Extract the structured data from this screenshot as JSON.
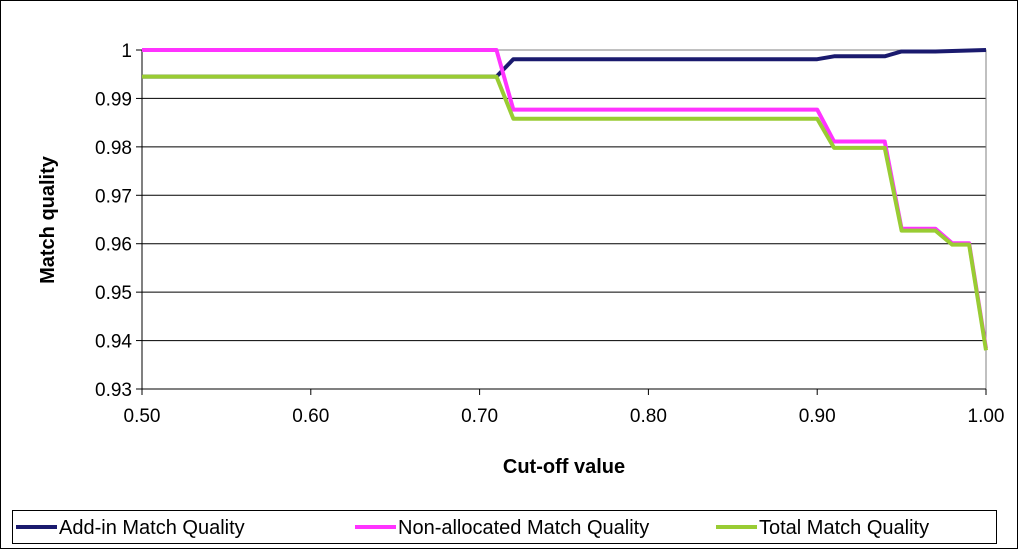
{
  "chart_data": {
    "type": "line",
    "xlabel": "Cut-off value",
    "ylabel": "Match quality",
    "xlim": [
      0.5,
      1.0
    ],
    "ylim": [
      0.93,
      1.0
    ],
    "x_ticks": [
      "0.50",
      "0.60",
      "0.70",
      "0.80",
      "0.90",
      "1.00"
    ],
    "y_ticks": [
      "0.93",
      "0.94",
      "0.95",
      "0.96",
      "0.97",
      "0.98",
      "0.99",
      "1"
    ],
    "grid": "horizontal",
    "legend_position": "bottom",
    "x": [
      0.5,
      0.51,
      0.52,
      0.53,
      0.54,
      0.55,
      0.56,
      0.57,
      0.58,
      0.59,
      0.6,
      0.61,
      0.62,
      0.63,
      0.64,
      0.65,
      0.66,
      0.67,
      0.68,
      0.69,
      0.7,
      0.71,
      0.72,
      0.73,
      0.74,
      0.75,
      0.76,
      0.77,
      0.78,
      0.79,
      0.8,
      0.81,
      0.82,
      0.83,
      0.84,
      0.85,
      0.86,
      0.87,
      0.88,
      0.89,
      0.9,
      0.91,
      0.92,
      0.93,
      0.94,
      0.95,
      0.96,
      0.97,
      0.98,
      0.99,
      1.0
    ],
    "series": [
      {
        "name": "Add-in Match Quality",
        "color": "#1a1a6e",
        "values": [
          0.9945,
          0.9945,
          0.9945,
          0.9945,
          0.9945,
          0.9945,
          0.9945,
          0.9945,
          0.9945,
          0.9945,
          0.9945,
          0.9945,
          0.9945,
          0.9945,
          0.9945,
          0.9945,
          0.9945,
          0.9945,
          0.9945,
          0.9945,
          0.9945,
          0.9945,
          0.9981,
          0.9981,
          0.9981,
          0.9981,
          0.9981,
          0.9981,
          0.9981,
          0.9981,
          0.9981,
          0.9981,
          0.9981,
          0.9981,
          0.9981,
          0.9981,
          0.9981,
          0.9981,
          0.9981,
          0.9981,
          0.9981,
          0.9987,
          0.9987,
          0.9987,
          0.9987,
          0.9997,
          0.9997,
          0.9997,
          0.9998,
          0.9999,
          1.0
        ]
      },
      {
        "name": "Non-allocated Match Quality",
        "color": "#ff33ff",
        "values": [
          1.0,
          1.0,
          1.0,
          1.0,
          1.0,
          1.0,
          1.0,
          1.0,
          1.0,
          1.0,
          1.0,
          1.0,
          1.0,
          1.0,
          1.0,
          1.0,
          1.0,
          1.0,
          1.0,
          1.0,
          1.0,
          1.0,
          0.9877,
          0.9877,
          0.9877,
          0.9877,
          0.9877,
          0.9877,
          0.9877,
          0.9877,
          0.9877,
          0.9877,
          0.9877,
          0.9877,
          0.9877,
          0.9877,
          0.9877,
          0.9877,
          0.9877,
          0.9877,
          0.9877,
          0.9811,
          0.9811,
          0.9811,
          0.9811,
          0.9631,
          0.9631,
          0.9631,
          0.9601,
          0.9601,
          0.9384
        ]
      },
      {
        "name": "Total Match Quality",
        "color": "#99cc33",
        "values": [
          0.9945,
          0.9945,
          0.9945,
          0.9945,
          0.9945,
          0.9945,
          0.9945,
          0.9945,
          0.9945,
          0.9945,
          0.9945,
          0.9945,
          0.9945,
          0.9945,
          0.9945,
          0.9945,
          0.9945,
          0.9945,
          0.9945,
          0.9945,
          0.9945,
          0.9945,
          0.9858,
          0.9858,
          0.9858,
          0.9858,
          0.9858,
          0.9858,
          0.9858,
          0.9858,
          0.9858,
          0.9858,
          0.9858,
          0.9858,
          0.9858,
          0.9858,
          0.9858,
          0.9858,
          0.9858,
          0.9858,
          0.9858,
          0.9798,
          0.9798,
          0.9798,
          0.9798,
          0.9627,
          0.9627,
          0.9627,
          0.9598,
          0.9598,
          0.938
        ]
      }
    ]
  }
}
